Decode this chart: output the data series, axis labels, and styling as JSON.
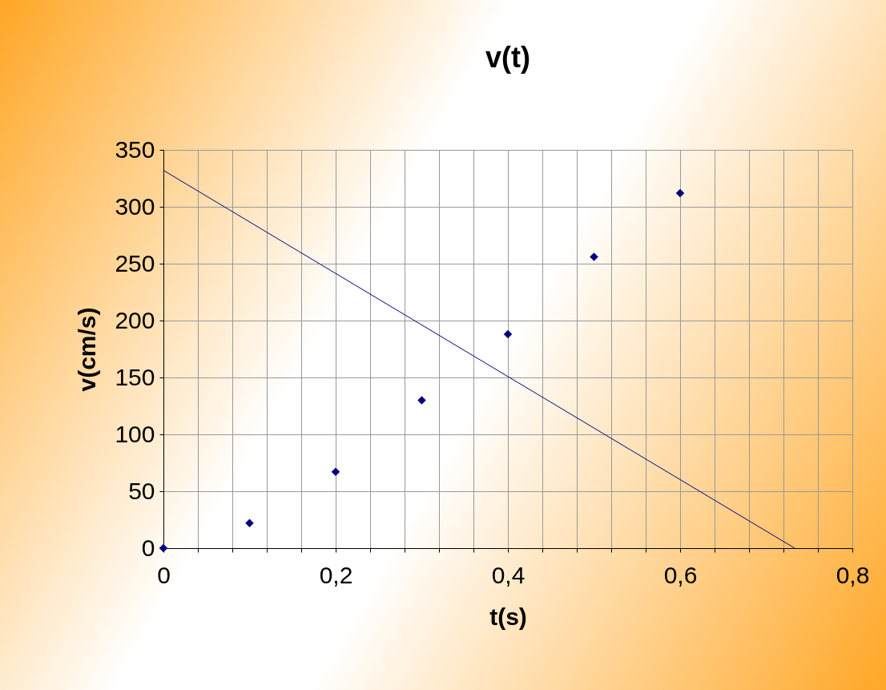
{
  "chart_data": {
    "type": "scatter",
    "title": "v(t)",
    "xlabel": "t(s)",
    "ylabel": "v(cm/s)",
    "x": [
      0,
      0.1,
      0.2,
      0.3,
      0.4,
      0.5,
      0.6
    ],
    "series": [
      {
        "color": "#000080",
        "marker": "diamond",
        "values": [
          0,
          22,
          67,
          130,
          188,
          256,
          312
        ]
      },
      {
        "type": "line",
        "color": "#000080",
        "marker": "none",
        "line_style": "solid",
        "x": [
          0,
          0.733
        ],
        "values": [
          332,
          0
        ]
      }
    ],
    "xlim": [
      0,
      0.8
    ],
    "ylim": [
      0,
      350
    ],
    "xticks": [
      {
        "value": 0,
        "label": "0"
      },
      {
        "value": 0.04,
        "label": null
      },
      {
        "value": 0.08,
        "label": null
      },
      {
        "value": 0.12,
        "label": null
      },
      {
        "value": 0.16,
        "label": null
      },
      {
        "value": 0.2,
        "label": "0,2"
      },
      {
        "value": 0.24,
        "label": null
      },
      {
        "value": 0.28,
        "label": null
      },
      {
        "value": 0.32,
        "label": null
      },
      {
        "value": 0.36,
        "label": null
      },
      {
        "value": 0.4,
        "label": "0,4"
      },
      {
        "value": 0.44,
        "label": null
      },
      {
        "value": 0.48,
        "label": null
      },
      {
        "value": 0.52,
        "label": null
      },
      {
        "value": 0.56,
        "label": null
      },
      {
        "value": 0.6,
        "label": "0,6"
      },
      {
        "value": 0.64,
        "label": null
      },
      {
        "value": 0.68,
        "label": null
      },
      {
        "value": 0.72,
        "label": null
      },
      {
        "value": 0.76,
        "label": null
      },
      {
        "value": 0.8,
        "label": "0,8"
      }
    ],
    "yticks": [
      0,
      50,
      100,
      150,
      200,
      250,
      300,
      350
    ],
    "grid": true
  }
}
